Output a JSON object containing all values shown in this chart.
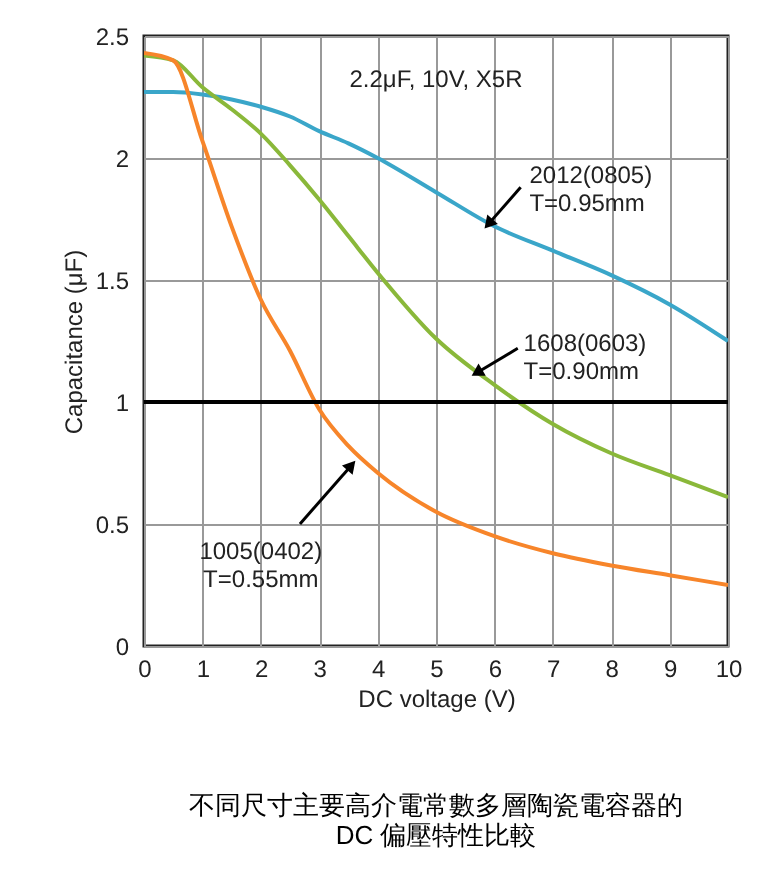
{
  "chart_data": {
    "type": "line",
    "title": "不同尺寸主要高介電常數多層陶瓷電容器的\nDC 偏壓特性比較",
    "xlabel": "DC voltage (V)",
    "ylabel": "Capacitance (μF)",
    "x": [
      0,
      0.5,
      1,
      1.5,
      2,
      2.5,
      3,
      3.5,
      4,
      5,
      6,
      7,
      8,
      9,
      10
    ],
    "series": [
      {
        "color": "#3aa6c9",
        "values": [
          2.27,
          2.27,
          2.26,
          2.24,
          2.21,
          2.17,
          2.11,
          2.06,
          2.0,
          1.86,
          1.72,
          1.62,
          1.52,
          1.4,
          1.25
        ]
      },
      {
        "color": "#8ab83a",
        "values": [
          2.42,
          2.4,
          2.29,
          2.2,
          2.1,
          1.97,
          1.83,
          1.68,
          1.53,
          1.26,
          1.07,
          0.91,
          0.79,
          0.7,
          0.61
        ]
      },
      {
        "color": "#f7852a",
        "values": [
          2.43,
          2.4,
          2.07,
          1.72,
          1.42,
          1.21,
          0.97,
          0.82,
          0.71,
          0.55,
          0.45,
          0.38,
          0.33,
          0.29,
          0.25
        ]
      }
    ],
    "xlim": [
      0,
      10
    ],
    "xticks": [
      0,
      1,
      2,
      3,
      4,
      5,
      6,
      7,
      8,
      9,
      10
    ],
    "ylim": [
      0,
      2.5
    ],
    "yticks": [
      0,
      0.5,
      1,
      1.5,
      2,
      2.5
    ],
    "grid": true,
    "ref_lines": [
      {
        "axis": "y",
        "value": 1,
        "color": "#000000"
      }
    ],
    "annotations": [
      "2.2μF, 10V, X5R",
      {
        "text": "2012(0805)\nT=0.95mm",
        "x": 5.9,
        "y": 1.73
      },
      {
        "text": "1608(0603)\nT=0.90mm",
        "x": 5.7,
        "y": 1.12
      },
      {
        "text": "1005(0402)\nT=0.55mm",
        "x": 3.55,
        "y": 0.74
      }
    ]
  }
}
